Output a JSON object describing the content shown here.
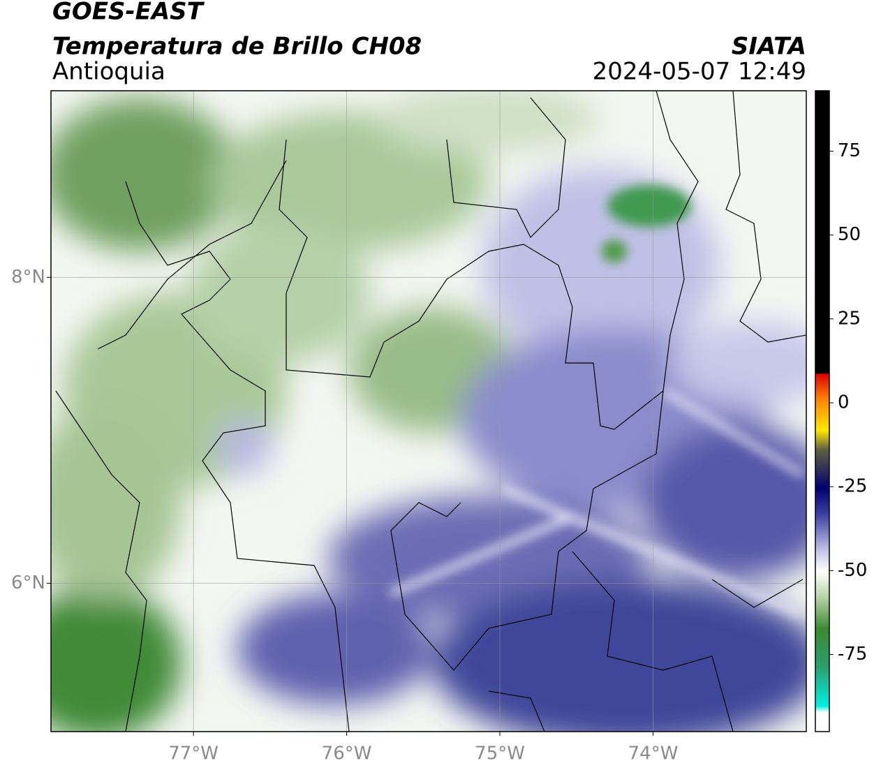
{
  "header": {
    "title": "GOES-EAST",
    "subtitle": "Temperatura de Brillo CH08",
    "region": "Antioquia",
    "source": "SIATA",
    "timestamp": "2024-05-07 12:49"
  },
  "map": {
    "xlim": [
      -77.93,
      -73.0
    ],
    "ylim": [
      5.03,
      9.22
    ],
    "xticks": [
      {
        "value": -77,
        "label": "77°W"
      },
      {
        "value": -76,
        "label": "76°W"
      },
      {
        "value": -75,
        "label": "75°W"
      },
      {
        "value": -74,
        "label": "74°W"
      }
    ],
    "yticks": [
      {
        "value": 8,
        "label": "8°N"
      },
      {
        "value": 6,
        "label": "6°N"
      }
    ],
    "grid": true
  },
  "colorbar": {
    "clim": [
      -98,
      93
    ],
    "ticks": [
      75,
      50,
      25,
      0,
      -25,
      -50,
      -75
    ]
  }
}
